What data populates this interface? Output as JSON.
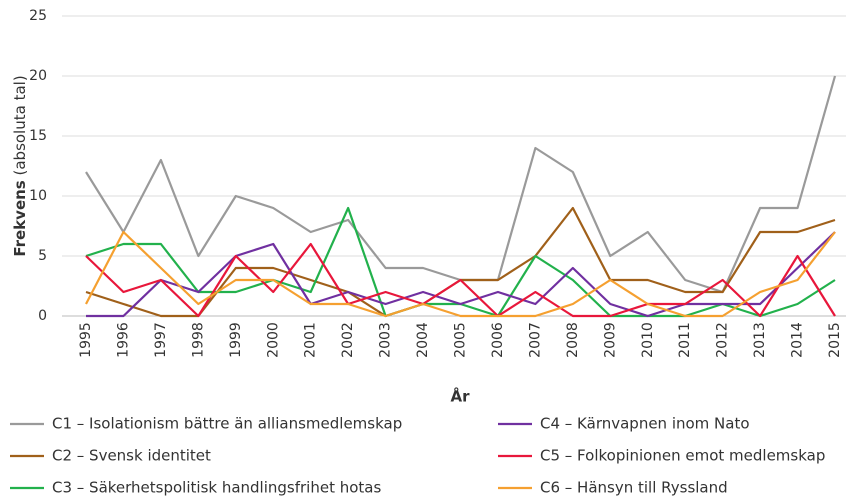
{
  "chart_data": {
    "type": "line",
    "xlabel": "År",
    "ylabel": {
      "bold": "Frekvens",
      "normal": "(absoluta tal)"
    },
    "categories": [
      "1995",
      "1996",
      "1997",
      "1998",
      "1999",
      "2000",
      "2001",
      "2002",
      "2003",
      "2004",
      "2005",
      "2006",
      "2007",
      "2008",
      "2009",
      "2010",
      "2011",
      "2012",
      "2013",
      "2014",
      "2015"
    ],
    "ylim": [
      0,
      25
    ],
    "yticks": [
      0,
      5,
      10,
      15,
      20,
      25
    ],
    "grid": true,
    "series": [
      {
        "name": "C1 – Isolationism bättre än alliansmedlemskap",
        "color": "#9a9a9a",
        "values": [
          12,
          7,
          13,
          5,
          10,
          9,
          7,
          8,
          4,
          4,
          3,
          3,
          14,
          12,
          5,
          7,
          3,
          2,
          9,
          9,
          20
        ]
      },
      {
        "name": "C2 – Svensk identitet",
        "color": "#a0601a",
        "values": [
          2,
          1,
          0,
          0,
          4,
          4,
          3,
          2,
          0,
          1,
          3,
          3,
          5,
          9,
          3,
          3,
          2,
          2,
          7,
          7,
          8
        ]
      },
      {
        "name": "C3 – Säkerhetspolitisk handlingsfrihet hotas",
        "color": "#22b14c",
        "values": [
          5,
          6,
          6,
          2,
          2,
          3,
          2,
          9,
          0,
          1,
          1,
          0,
          5,
          3,
          0,
          0,
          0,
          1,
          0,
          1,
          3
        ]
      },
      {
        "name": "C4 – Kärnvapnen inom Nato",
        "color": "#7030a0",
        "values": [
          0,
          0,
          3,
          2,
          5,
          6,
          1,
          2,
          1,
          2,
          1,
          2,
          1,
          4,
          1,
          0,
          1,
          1,
          1,
          4,
          7
        ]
      },
      {
        "name": "C5 – Folkopinionen emot medlemskap",
        "color": "#e8173b",
        "values": [
          5,
          2,
          3,
          0,
          5,
          2,
          6,
          1,
          2,
          1,
          3,
          0,
          2,
          0,
          0,
          1,
          1,
          3,
          0,
          5,
          0
        ]
      },
      {
        "name": "C6 – Hänsyn till Ryssland",
        "color": "#f5a030",
        "values": [
          1,
          7,
          4,
          1,
          3,
          3,
          1,
          1,
          0,
          1,
          0,
          0,
          0,
          1,
          3,
          1,
          0,
          0,
          2,
          3,
          7
        ]
      }
    ]
  }
}
